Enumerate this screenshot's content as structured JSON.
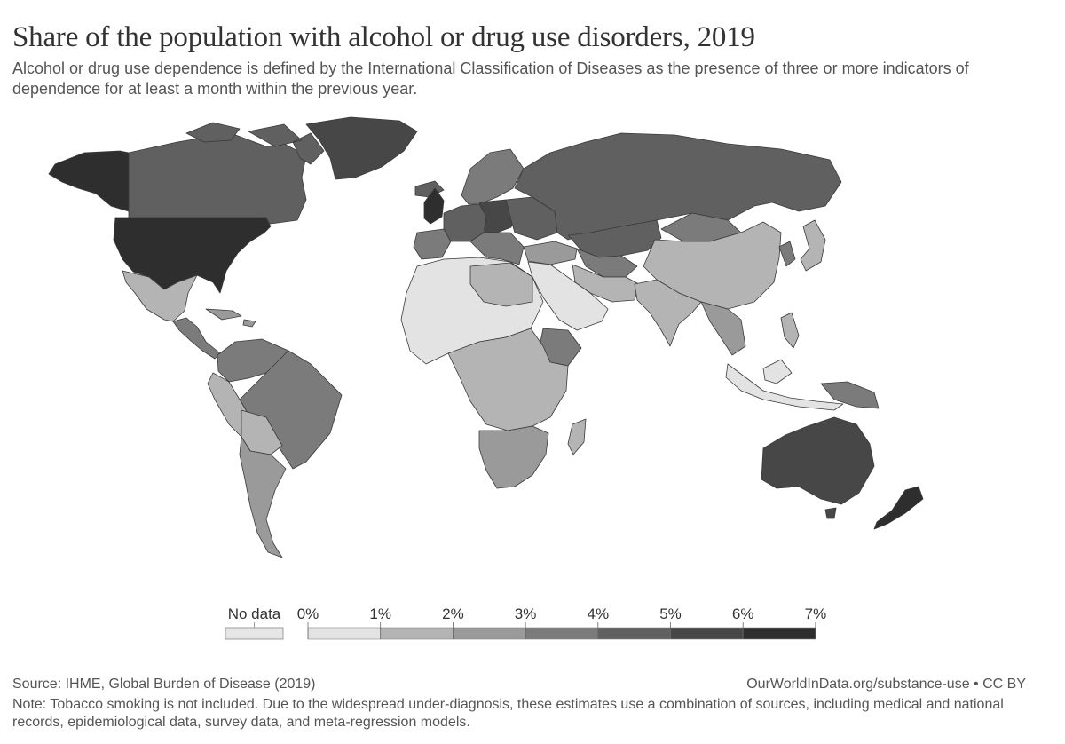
{
  "title": "Share of the population with alcohol or drug use disorders, 2019",
  "subtitle": "Alcohol or drug use dependence is defined by the International Classification of Diseases as the presence of three or more indicators of dependence for at least a month within the previous year.",
  "legend": {
    "no_data_label": "No data",
    "no_data_color": "#e6e6e6",
    "ticks": [
      "0%",
      "1%",
      "2%",
      "3%",
      "4%",
      "5%",
      "6%",
      "7%"
    ],
    "colors": [
      "#e3e3e3",
      "#b4b4b4",
      "#9a9a9a",
      "#7b7b7b",
      "#606060",
      "#474747",
      "#2e2e2e"
    ]
  },
  "source": "Source: IHME, Global Burden of Disease (2019)",
  "url": "OurWorldInData.org/substance-use • CC BY",
  "note": "Note: Tobacco smoking is not included. Due to the widespread under-diagnosis, these estimates use a combination of sources, including medical and national records, epidemiological data, survey data, and meta-regression models.",
  "colors": {
    "ocean": "#ffffff",
    "border": "#3a3a3a"
  }
}
